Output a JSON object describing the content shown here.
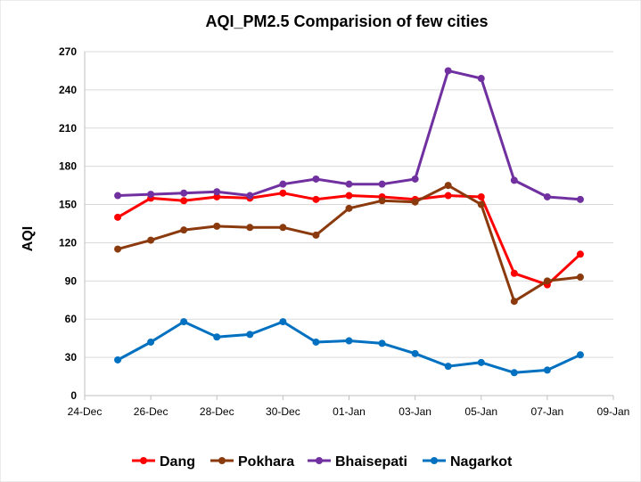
{
  "chart_data": {
    "type": "line",
    "title": "AQI_PM2.5 Comparision  of few cities",
    "xlabel": "",
    "ylabel": "AQI",
    "ylim": [
      0,
      270
    ],
    "yticks": [
      "0",
      "30",
      "60",
      "90",
      "120",
      "150",
      "180",
      "210",
      "240",
      "270"
    ],
    "xlim": [
      "2022-12-24",
      "2023-01-09"
    ],
    "xticks": [
      "24-Dec",
      "26-Dec",
      "28-Dec",
      "30-Dec",
      "01-Jan",
      "03-Jan",
      "05-Jan",
      "07-Jan",
      "09-Jan"
    ],
    "x": [
      "2022-12-25",
      "2022-12-26",
      "2022-12-27",
      "2022-12-28",
      "2022-12-29",
      "2022-12-30",
      "2022-12-31",
      "2023-01-01",
      "2023-01-02",
      "2023-01-03",
      "2023-01-04",
      "2023-01-05",
      "2023-01-06",
      "2023-01-07",
      "2023-01-08"
    ],
    "grid": "horizontal",
    "legend": "bottom",
    "series": [
      {
        "name": "Dang",
        "color": "#ff0000",
        "values": [
          140,
          155,
          153,
          156,
          155,
          159,
          154,
          157,
          156,
          154,
          157,
          156,
          96,
          87,
          111
        ]
      },
      {
        "name": "Pokhara",
        "color": "#8b3a0e",
        "values": [
          115,
          122,
          130,
          133,
          132,
          132,
          126,
          147,
          153,
          152,
          165,
          150,
          74,
          90,
          93
        ]
      },
      {
        "name": "Bhaisepati",
        "color": "#7030a0",
        "values": [
          157,
          158,
          159,
          160,
          157,
          166,
          170,
          166,
          166,
          170,
          255,
          249,
          169,
          156,
          154
        ]
      },
      {
        "name": "Nagarkot",
        "color": "#0070c0",
        "values": [
          28,
          42,
          58,
          46,
          48,
          58,
          42,
          43,
          41,
          33,
          23,
          26,
          18,
          20,
          32
        ]
      }
    ]
  }
}
